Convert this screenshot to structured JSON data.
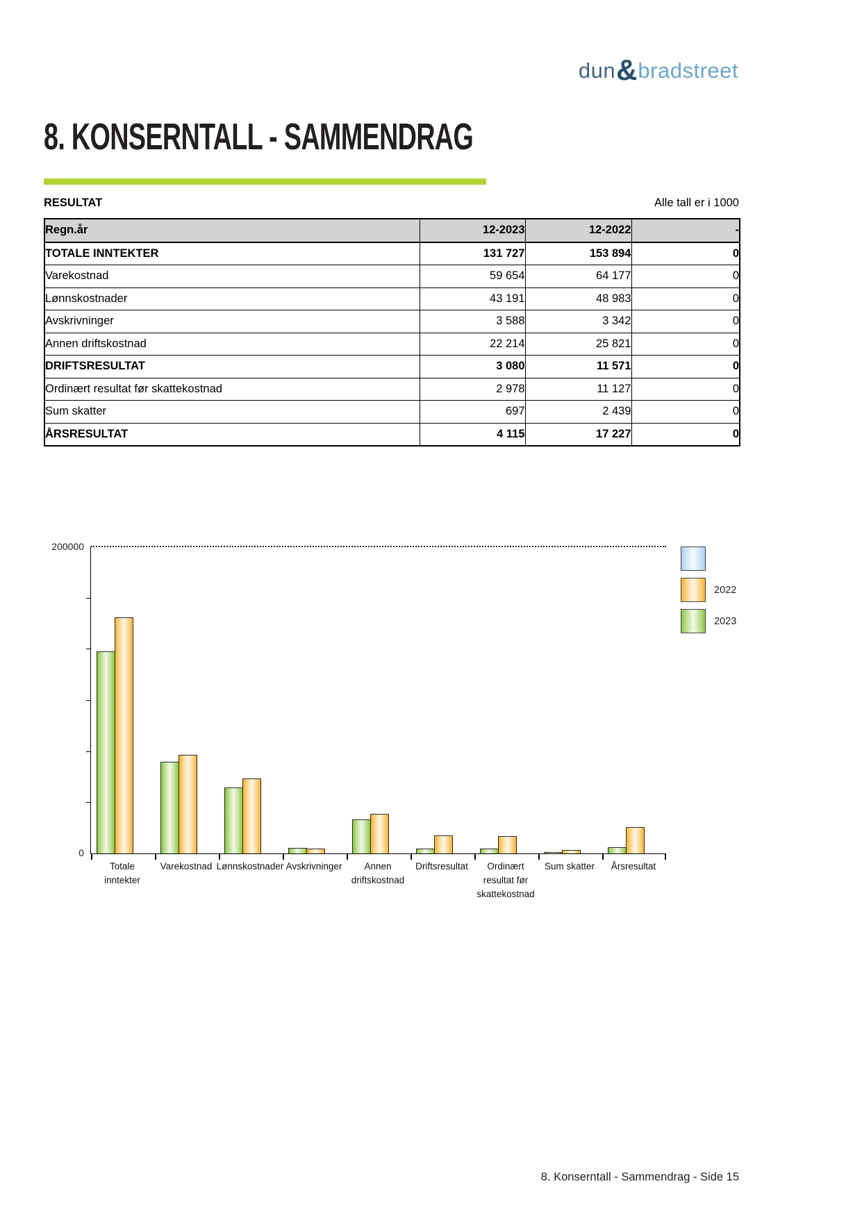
{
  "logo": {
    "dun": "dun",
    "amp": "&",
    "bradstreet": "bradstreet",
    "dun_color": "#44657d",
    "amp_color": "#27506e",
    "bradstreet_color": "#6aa6c8"
  },
  "page": {
    "title": "8. KONSERNTALL - SAMMENDRAG",
    "accent_color": "#b2d235",
    "footer": "8. Konserntall - Sammendrag - Side 15"
  },
  "result_section": {
    "label": "RESULTAT",
    "units_note": "Alle tall er i 1000"
  },
  "table": {
    "headers": [
      "Regn.år",
      "12-2023",
      "12-2022",
      "-"
    ],
    "rows": [
      {
        "label": "TOTALE INNTEKTER",
        "values": [
          "131 727",
          "153 894",
          "0"
        ],
        "bold": true
      },
      {
        "label": "Varekostnad",
        "values": [
          "59 654",
          "64 177",
          "0"
        ],
        "bold": false
      },
      {
        "label": "Lønnskostnader",
        "values": [
          "43 191",
          "48 983",
          "0"
        ],
        "bold": false
      },
      {
        "label": "Avskrivninger",
        "values": [
          "3 588",
          "3 342",
          "0"
        ],
        "bold": false
      },
      {
        "label": "Annen driftskostnad",
        "values": [
          "22 214",
          "25 821",
          "0"
        ],
        "bold": false
      },
      {
        "label": "DRIFTSRESULTAT",
        "values": [
          "3 080",
          "11 571",
          "0"
        ],
        "bold": true
      },
      {
        "label": "Ordinært resultat før skattekostnad",
        "values": [
          "2 978",
          "11 127",
          "0"
        ],
        "bold": false
      },
      {
        "label": "Sum skatter",
        "values": [
          "697",
          "2 439",
          "0"
        ],
        "bold": false
      },
      {
        "label": "ÅRSRESULTAT",
        "values": [
          "4 115",
          "17 227",
          "0"
        ],
        "bold": true
      }
    ]
  },
  "chart_data": {
    "type": "bar",
    "title": "",
    "xlabel": "",
    "ylabel": "",
    "ylim": [
      0,
      200000
    ],
    "ytick_labels": {
      "min": "0",
      "max": "200000"
    },
    "grid": "single dotted line at y=200000",
    "legend_position": "right-top",
    "categories": [
      "Totale inntekter",
      "Varekostnad",
      "Lønnskostnader",
      "Avskrivninger",
      "Annen driftskostnad",
      "Driftsresultat",
      "Ordinært resultat før skattekostnad",
      "Sum skatter",
      "Årsresultat"
    ],
    "category_lines": [
      [
        "Totale",
        "inntekter"
      ],
      [
        "Varekostnad"
      ],
      [
        "Lønnskostnader"
      ],
      [
        "Avskrivninger"
      ],
      [
        "Annen",
        "driftskostnad"
      ],
      [
        "Driftsresultat"
      ],
      [
        "Ordinært",
        "resultat før",
        "skattekostnad"
      ],
      [
        "Sum skatter"
      ],
      [
        "Årsresultat"
      ]
    ],
    "series": [
      {
        "name": "2023",
        "color": "#8cc63e",
        "values": [
          131727,
          59654,
          43191,
          3588,
          22214,
          3080,
          2978,
          697,
          4115
        ]
      },
      {
        "name": "2022",
        "color": "#f9b233",
        "values": [
          153894,
          64177,
          48983,
          3342,
          25821,
          11571,
          11127,
          2439,
          17227
        ]
      }
    ],
    "legend": [
      {
        "label": "",
        "color": "#a9d0eb"
      },
      {
        "label": "2022",
        "color": "#f9b233"
      },
      {
        "label": "2023",
        "color": "#8cc63e"
      }
    ]
  }
}
